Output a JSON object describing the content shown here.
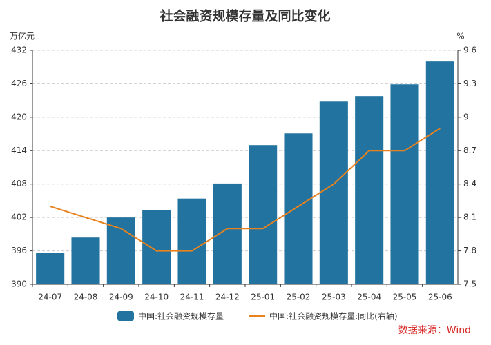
{
  "chart_data": {
    "type": "bar_line",
    "title": "社会融资规模存量及同比变化",
    "y_label": "万亿元",
    "y2_label": "%",
    "source": "数据来源：Wind",
    "categories": [
      "24-07",
      "24-08",
      "24-09",
      "24-10",
      "24-11",
      "24-12",
      "25-01",
      "25-02",
      "25-03",
      "25-04",
      "25-05",
      "25-06"
    ],
    "series": [
      {
        "name": "中国:社会融资规模存量",
        "type": "bar",
        "color": "#22739f",
        "values": [
          395.6,
          398.4,
          402.0,
          403.3,
          405.4,
          408.1,
          415.0,
          417.1,
          422.8,
          423.8,
          425.9,
          430.0
        ]
      },
      {
        "name": "中国:社会融资规模存量:同比(右轴)",
        "type": "line",
        "axis": "y2",
        "color": "#e8821e",
        "values": [
          8.2,
          8.1,
          8.0,
          7.8,
          7.8,
          8.0,
          8.0,
          8.2,
          8.4,
          8.7,
          8.7,
          8.9
        ]
      }
    ],
    "ylim": [
      390,
      432
    ],
    "yticks": [
      390,
      396,
      402,
      408,
      414,
      420,
      426,
      432
    ],
    "y2lim": [
      7.5,
      9.6
    ],
    "y2ticks": [
      7.5,
      7.8,
      8.1,
      8.4,
      8.7,
      9,
      9.3,
      9.6
    ],
    "grid": true
  }
}
